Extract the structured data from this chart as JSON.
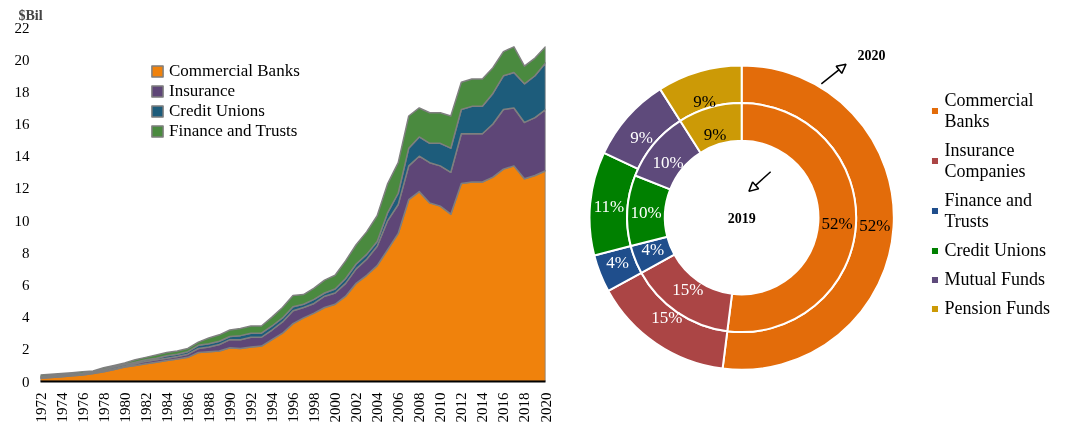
{
  "chart_data": [
    {
      "type": "area",
      "stacked": true,
      "ylabel": "$Bil",
      "x": [
        1972,
        1973,
        1974,
        1975,
        1976,
        1977,
        1978,
        1979,
        1980,
        1981,
        1982,
        1983,
        1984,
        1985,
        1986,
        1987,
        1988,
        1989,
        1990,
        1991,
        1992,
        1993,
        1994,
        1995,
        1996,
        1997,
        1998,
        1999,
        2000,
        2001,
        2002,
        2003,
        2004,
        2005,
        2006,
        2007,
        2008,
        2009,
        2010,
        2011,
        2012,
        2013,
        2014,
        2015,
        2016,
        2017,
        2018,
        2019,
        2020
      ],
      "series": [
        {
          "name": "Commercial Banks",
          "color": "#f0820c",
          "values": [
            0.2,
            0.25,
            0.3,
            0.35,
            0.4,
            0.5,
            0.6,
            0.75,
            0.9,
            1.0,
            1.1,
            1.2,
            1.3,
            1.4,
            1.5,
            1.8,
            1.85,
            1.9,
            2.1,
            2.05,
            2.15,
            2.2,
            2.6,
            3.0,
            3.6,
            3.95,
            4.25,
            4.6,
            4.8,
            5.3,
            6.1,
            6.6,
            7.2,
            8.2,
            9.2,
            11.3,
            11.8,
            11.1,
            10.9,
            10.4,
            12.3,
            12.4,
            12.4,
            12.7,
            13.2,
            13.4,
            12.6,
            12.8,
            13.1
          ]
        },
        {
          "name": "Insurance",
          "color": "#5e4677",
          "values": [
            0.05,
            0.05,
            0.05,
            0.05,
            0.05,
            0.05,
            0.05,
            0.05,
            0.05,
            0.1,
            0.15,
            0.15,
            0.15,
            0.15,
            0.2,
            0.25,
            0.3,
            0.4,
            0.5,
            0.55,
            0.6,
            0.55,
            0.6,
            0.7,
            0.8,
            0.65,
            0.6,
            0.7,
            0.7,
            0.8,
            0.9,
            1.0,
            1.2,
            1.8,
            1.8,
            2.1,
            2.2,
            2.5,
            2.5,
            2.6,
            3.1,
            3.0,
            3.0,
            3.3,
            3.7,
            3.6,
            3.5,
            3.6,
            3.8
          ]
        },
        {
          "name": "Credit Unions",
          "color": "#1d5c7b",
          "values": [
            0.05,
            0.05,
            0.05,
            0.05,
            0.05,
            0.05,
            0.1,
            0.1,
            0.1,
            0.1,
            0.1,
            0.1,
            0.15,
            0.15,
            0.15,
            0.2,
            0.2,
            0.2,
            0.2,
            0.25,
            0.25,
            0.25,
            0.25,
            0.25,
            0.25,
            0.2,
            0.25,
            0.2,
            0.25,
            0.3,
            0.3,
            0.3,
            0.3,
            0.5,
            0.7,
            1.1,
            1.2,
            1.2,
            1.4,
            1.5,
            1.5,
            1.7,
            1.7,
            1.9,
            2.1,
            2.2,
            2.4,
            2.6,
            2.9
          ]
        },
        {
          "name": "Finance and Trusts",
          "color": "#4a8a3f",
          "values": [
            0.1,
            0.1,
            0.1,
            0.1,
            0.1,
            0.05,
            0.1,
            0.1,
            0.1,
            0.15,
            0.15,
            0.2,
            0.2,
            0.2,
            0.2,
            0.2,
            0.35,
            0.4,
            0.4,
            0.45,
            0.45,
            0.45,
            0.55,
            0.65,
            0.7,
            0.6,
            0.7,
            0.8,
            0.85,
            1.1,
            1.2,
            1.4,
            1.6,
            1.8,
            1.9,
            2.0,
            1.8,
            1.9,
            1.9,
            2.0,
            1.7,
            1.7,
            1.7,
            1.6,
            1.5,
            1.6,
            1.1,
            1.1,
            1.0
          ]
        }
      ],
      "xlim": [
        1972,
        2020
      ],
      "xticks": [
        1972,
        1974,
        1976,
        1978,
        1980,
        1982,
        1984,
        1986,
        1988,
        1990,
        1992,
        1994,
        1996,
        1998,
        2000,
        2002,
        2004,
        2006,
        2008,
        2010,
        2012,
        2014,
        2016,
        2018,
        2020
      ],
      "ylim": [
        0,
        22
      ],
      "yticks": [
        0,
        2,
        4,
        6,
        8,
        10,
        12,
        14,
        16,
        18,
        20,
        22
      ],
      "grid": false,
      "legend": "top left"
    },
    {
      "type": "donut",
      "categories": [
        "Commercial Banks",
        "Insurance Companies",
        "Finance and Trusts",
        "Credit Unions",
        "Mutual Funds",
        "Pension Funds"
      ],
      "colors": [
        "#e36c0a",
        "#ab4545",
        "#1f4e8c",
        "#008000",
        "#5e4a7b",
        "#cc9a06"
      ],
      "series": [
        {
          "name": "2020",
          "values": [
            52,
            15,
            4,
            11,
            9,
            9
          ],
          "value_labels": [
            "52%",
            "15%",
            "4%",
            "11%",
            "9%",
            "9%"
          ]
        },
        {
          "name": "2019",
          "values": [
            52,
            15,
            4,
            10,
            10,
            9
          ],
          "value_labels": [
            "52%",
            "15%",
            "4%",
            "10%",
            "10%",
            "9%"
          ]
        }
      ],
      "legend": "right"
    }
  ]
}
